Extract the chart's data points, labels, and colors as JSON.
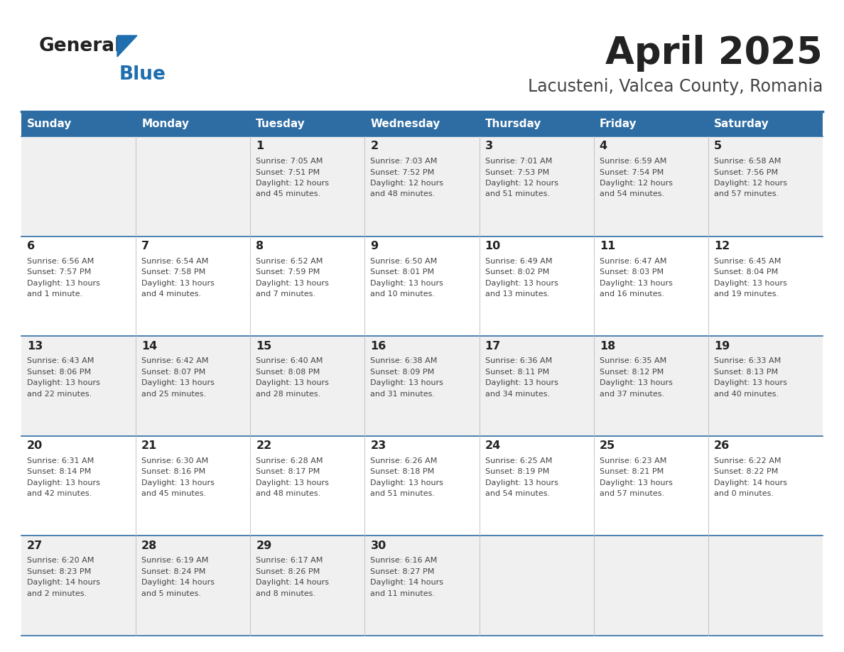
{
  "title": "April 2025",
  "subtitle": "Lacusteni, Valcea County, Romania",
  "header_bg_color": "#2E6DA4",
  "header_text_color": "#FFFFFF",
  "day_headers": [
    "Sunday",
    "Monday",
    "Tuesday",
    "Wednesday",
    "Thursday",
    "Friday",
    "Saturday"
  ],
  "bg_color": "#FFFFFF",
  "cell_bg_even": "#F0F0F0",
  "cell_bg_odd": "#FFFFFF",
  "border_color": "#2E6DA4",
  "day_number_color": "#222222",
  "cell_text_color": "#444444",
  "title_color": "#222222",
  "subtitle_color": "#444444",
  "logo_color1": "#222222",
  "logo_color2": "#1E6EB0",
  "weeks": [
    [
      {
        "day": 0,
        "date": "",
        "lines": []
      },
      {
        "day": 1,
        "date": "",
        "lines": []
      },
      {
        "day": 2,
        "date": "1",
        "lines": [
          "Sunrise: 7:05 AM",
          "Sunset: 7:51 PM",
          "Daylight: 12 hours",
          "and 45 minutes."
        ]
      },
      {
        "day": 3,
        "date": "2",
        "lines": [
          "Sunrise: 7:03 AM",
          "Sunset: 7:52 PM",
          "Daylight: 12 hours",
          "and 48 minutes."
        ]
      },
      {
        "day": 4,
        "date": "3",
        "lines": [
          "Sunrise: 7:01 AM",
          "Sunset: 7:53 PM",
          "Daylight: 12 hours",
          "and 51 minutes."
        ]
      },
      {
        "day": 5,
        "date": "4",
        "lines": [
          "Sunrise: 6:59 AM",
          "Sunset: 7:54 PM",
          "Daylight: 12 hours",
          "and 54 minutes."
        ]
      },
      {
        "day": 6,
        "date": "5",
        "lines": [
          "Sunrise: 6:58 AM",
          "Sunset: 7:56 PM",
          "Daylight: 12 hours",
          "and 57 minutes."
        ]
      }
    ],
    [
      {
        "day": 0,
        "date": "6",
        "lines": [
          "Sunrise: 6:56 AM",
          "Sunset: 7:57 PM",
          "Daylight: 13 hours",
          "and 1 minute."
        ]
      },
      {
        "day": 1,
        "date": "7",
        "lines": [
          "Sunrise: 6:54 AM",
          "Sunset: 7:58 PM",
          "Daylight: 13 hours",
          "and 4 minutes."
        ]
      },
      {
        "day": 2,
        "date": "8",
        "lines": [
          "Sunrise: 6:52 AM",
          "Sunset: 7:59 PM",
          "Daylight: 13 hours",
          "and 7 minutes."
        ]
      },
      {
        "day": 3,
        "date": "9",
        "lines": [
          "Sunrise: 6:50 AM",
          "Sunset: 8:01 PM",
          "Daylight: 13 hours",
          "and 10 minutes."
        ]
      },
      {
        "day": 4,
        "date": "10",
        "lines": [
          "Sunrise: 6:49 AM",
          "Sunset: 8:02 PM",
          "Daylight: 13 hours",
          "and 13 minutes."
        ]
      },
      {
        "day": 5,
        "date": "11",
        "lines": [
          "Sunrise: 6:47 AM",
          "Sunset: 8:03 PM",
          "Daylight: 13 hours",
          "and 16 minutes."
        ]
      },
      {
        "day": 6,
        "date": "12",
        "lines": [
          "Sunrise: 6:45 AM",
          "Sunset: 8:04 PM",
          "Daylight: 13 hours",
          "and 19 minutes."
        ]
      }
    ],
    [
      {
        "day": 0,
        "date": "13",
        "lines": [
          "Sunrise: 6:43 AM",
          "Sunset: 8:06 PM",
          "Daylight: 13 hours",
          "and 22 minutes."
        ]
      },
      {
        "day": 1,
        "date": "14",
        "lines": [
          "Sunrise: 6:42 AM",
          "Sunset: 8:07 PM",
          "Daylight: 13 hours",
          "and 25 minutes."
        ]
      },
      {
        "day": 2,
        "date": "15",
        "lines": [
          "Sunrise: 6:40 AM",
          "Sunset: 8:08 PM",
          "Daylight: 13 hours",
          "and 28 minutes."
        ]
      },
      {
        "day": 3,
        "date": "16",
        "lines": [
          "Sunrise: 6:38 AM",
          "Sunset: 8:09 PM",
          "Daylight: 13 hours",
          "and 31 minutes."
        ]
      },
      {
        "day": 4,
        "date": "17",
        "lines": [
          "Sunrise: 6:36 AM",
          "Sunset: 8:11 PM",
          "Daylight: 13 hours",
          "and 34 minutes."
        ]
      },
      {
        "day": 5,
        "date": "18",
        "lines": [
          "Sunrise: 6:35 AM",
          "Sunset: 8:12 PM",
          "Daylight: 13 hours",
          "and 37 minutes."
        ]
      },
      {
        "day": 6,
        "date": "19",
        "lines": [
          "Sunrise: 6:33 AM",
          "Sunset: 8:13 PM",
          "Daylight: 13 hours",
          "and 40 minutes."
        ]
      }
    ],
    [
      {
        "day": 0,
        "date": "20",
        "lines": [
          "Sunrise: 6:31 AM",
          "Sunset: 8:14 PM",
          "Daylight: 13 hours",
          "and 42 minutes."
        ]
      },
      {
        "day": 1,
        "date": "21",
        "lines": [
          "Sunrise: 6:30 AM",
          "Sunset: 8:16 PM",
          "Daylight: 13 hours",
          "and 45 minutes."
        ]
      },
      {
        "day": 2,
        "date": "22",
        "lines": [
          "Sunrise: 6:28 AM",
          "Sunset: 8:17 PM",
          "Daylight: 13 hours",
          "and 48 minutes."
        ]
      },
      {
        "day": 3,
        "date": "23",
        "lines": [
          "Sunrise: 6:26 AM",
          "Sunset: 8:18 PM",
          "Daylight: 13 hours",
          "and 51 minutes."
        ]
      },
      {
        "day": 4,
        "date": "24",
        "lines": [
          "Sunrise: 6:25 AM",
          "Sunset: 8:19 PM",
          "Daylight: 13 hours",
          "and 54 minutes."
        ]
      },
      {
        "day": 5,
        "date": "25",
        "lines": [
          "Sunrise: 6:23 AM",
          "Sunset: 8:21 PM",
          "Daylight: 13 hours",
          "and 57 minutes."
        ]
      },
      {
        "day": 6,
        "date": "26",
        "lines": [
          "Sunrise: 6:22 AM",
          "Sunset: 8:22 PM",
          "Daylight: 14 hours",
          "and 0 minutes."
        ]
      }
    ],
    [
      {
        "day": 0,
        "date": "27",
        "lines": [
          "Sunrise: 6:20 AM",
          "Sunset: 8:23 PM",
          "Daylight: 14 hours",
          "and 2 minutes."
        ]
      },
      {
        "day": 1,
        "date": "28",
        "lines": [
          "Sunrise: 6:19 AM",
          "Sunset: 8:24 PM",
          "Daylight: 14 hours",
          "and 5 minutes."
        ]
      },
      {
        "day": 2,
        "date": "29",
        "lines": [
          "Sunrise: 6:17 AM",
          "Sunset: 8:26 PM",
          "Daylight: 14 hours",
          "and 8 minutes."
        ]
      },
      {
        "day": 3,
        "date": "30",
        "lines": [
          "Sunrise: 6:16 AM",
          "Sunset: 8:27 PM",
          "Daylight: 14 hours",
          "and 11 minutes."
        ]
      },
      {
        "day": 4,
        "date": "",
        "lines": []
      },
      {
        "day": 5,
        "date": "",
        "lines": []
      },
      {
        "day": 6,
        "date": "",
        "lines": []
      }
    ]
  ]
}
